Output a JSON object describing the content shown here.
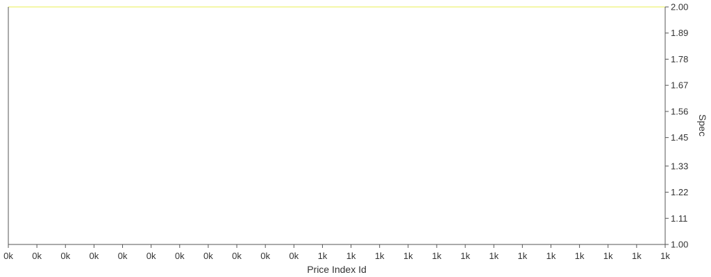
{
  "chart_data": {
    "type": "line",
    "xlabel": "Price Index Id",
    "ylabel": "Spec",
    "x_ticks": [
      "0k",
      "0k",
      "0k",
      "0k",
      "0k",
      "0k",
      "0k",
      "0k",
      "0k",
      "0k",
      "0k",
      "1k",
      "1k",
      "1k",
      "1k",
      "1k",
      "1k",
      "1k",
      "1k",
      "1k",
      "1k",
      "1k",
      "1k",
      "1k"
    ],
    "y_ticks": [
      "2.00",
      "1.89",
      "1.78",
      "1.67",
      "1.56",
      "1.45",
      "1.33",
      "1.22",
      "1.11",
      "1.00"
    ],
    "ylim": [
      1,
      2
    ],
    "y_axis_position": "right",
    "series": [
      {
        "color": "#f4f7a8",
        "values": [
          2,
          2,
          2,
          2,
          2,
          2,
          2,
          2,
          2,
          2,
          2,
          2,
          2,
          2,
          2,
          2,
          2,
          2,
          2,
          2,
          2,
          2,
          2,
          2
        ]
      }
    ],
    "colors": {
      "axis": "#555555",
      "text": "#333333",
      "series": "#f4f7a8"
    }
  }
}
